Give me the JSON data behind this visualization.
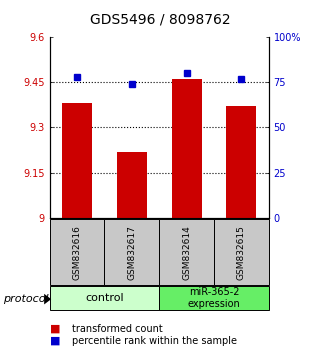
{
  "title": "GDS5496 / 8098762",
  "samples": [
    "GSM832616",
    "GSM832617",
    "GSM832614",
    "GSM832615"
  ],
  "bar_values": [
    9.38,
    9.22,
    9.46,
    9.37
  ],
  "dot_values": [
    78,
    74,
    80,
    77
  ],
  "ylim_left": [
    9.0,
    9.6
  ],
  "ylim_right": [
    0,
    100
  ],
  "yticks_left": [
    9.0,
    9.15,
    9.3,
    9.45,
    9.6
  ],
  "ytick_labels_left": [
    "9",
    "9.15",
    "9.3",
    "9.45",
    "9.6"
  ],
  "yticks_right": [
    0,
    25,
    50,
    75,
    100
  ],
  "ytick_labels_right": [
    "0",
    "25",
    "50",
    "75",
    "100%"
  ],
  "bar_color": "#cc0000",
  "dot_color": "#0000cc",
  "bar_width": 0.55,
  "group1_label": "control",
  "group1_color": "#ccffcc",
  "group2_label": "miR-365-2\nexpression",
  "group2_color": "#66ee66",
  "legend_bar_label": "transformed count",
  "legend_dot_label": "percentile rank within the sample",
  "protocol_label": "protocol",
  "tick_color_left": "#cc0000",
  "tick_color_right": "#0000cc",
  "title_fontsize": 10,
  "tick_fontsize": 7,
  "sample_fontsize": 6.5,
  "group_fontsize": 8,
  "legend_fontsize": 7
}
